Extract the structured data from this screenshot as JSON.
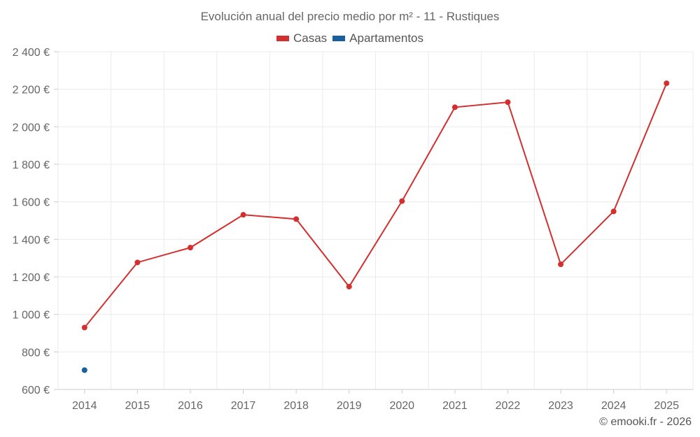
{
  "chart_data": {
    "type": "line",
    "title": "Evolución anual del precio medio por m² - 11 - Rustiques",
    "categories": [
      "2014",
      "2015",
      "2016",
      "2017",
      "2018",
      "2019",
      "2020",
      "2021",
      "2022",
      "2023",
      "2024",
      "2025"
    ],
    "series": [
      {
        "name": "Casas",
        "color": "#d32f2f",
        "values": [
          930,
          1277,
          1356,
          1531,
          1508,
          1148,
          1604,
          2104,
          2131,
          1267,
          1549,
          2232
        ]
      },
      {
        "name": "Apartamentos",
        "color": "#1a5f9e",
        "values": [
          703,
          null,
          null,
          null,
          null,
          null,
          null,
          null,
          null,
          null,
          null,
          null
        ]
      }
    ],
    "ylim": [
      600,
      2400
    ],
    "yticks": [
      600,
      800,
      1000,
      1200,
      1400,
      1600,
      1800,
      2000,
      2200,
      2400
    ],
    "ytick_labels": [
      "600 €",
      "800 €",
      "1 000 €",
      "1 200 €",
      "1 400 €",
      "1 600 €",
      "1 800 €",
      "2 000 €",
      "2 200 €",
      "2 400 €"
    ],
    "xlabel": "",
    "ylabel": "",
    "grid": true,
    "legend_position": "top-center"
  },
  "footer": {
    "credit": "© emooki.fr - 2026"
  }
}
